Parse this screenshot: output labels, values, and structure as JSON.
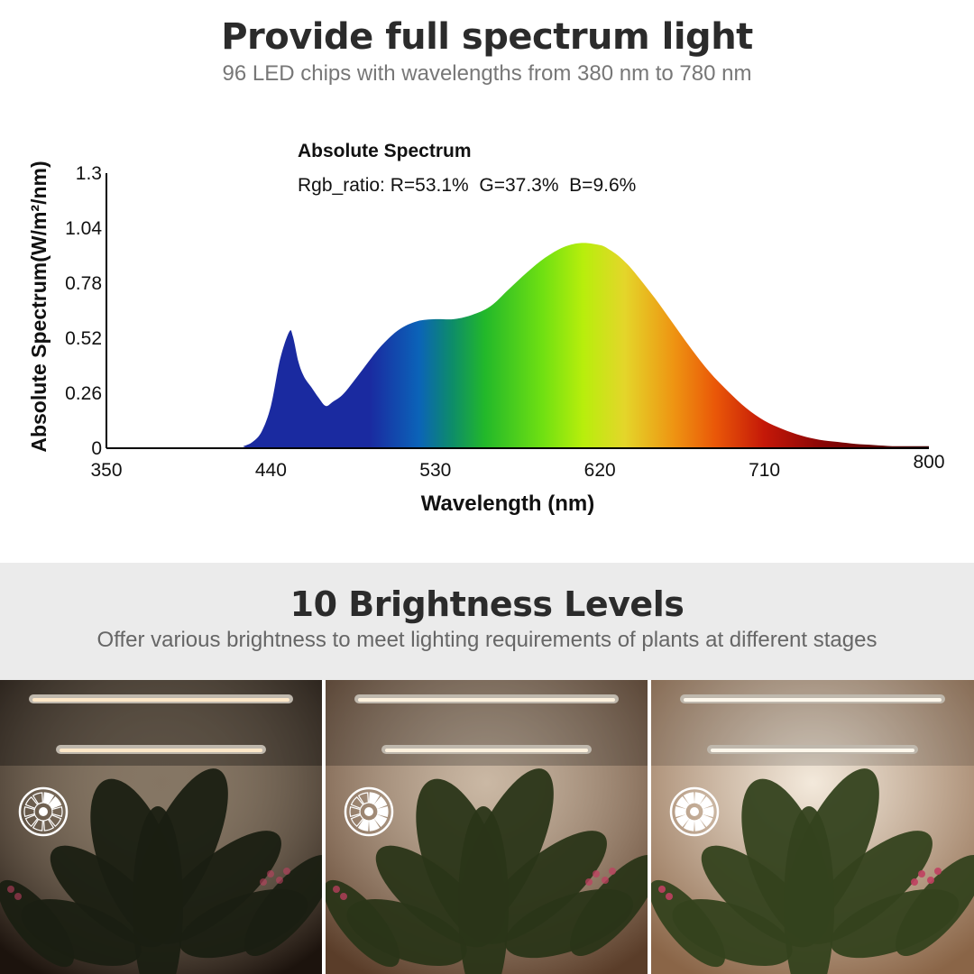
{
  "header": {
    "title": "Provide full spectrum light",
    "subtitle": "96 LED chips with wavelengths from 380 nm to 780 nm"
  },
  "chart_data": {
    "type": "area",
    "title": "Absolute Spectrum",
    "subtitle": "Rgb_ratio: R=53.1%  G=37.3%  B=9.6%",
    "xlabel": "Wavelength (nm)",
    "ylabel": "Absolute Spectrum(W/m²/nm)",
    "xlim": [
      350,
      800
    ],
    "ylim": [
      0,
      1.3
    ],
    "xticks": [
      "350",
      "440",
      "530",
      "620",
      "710",
      "800"
    ],
    "yticks": [
      "0",
      "0.26",
      "0.52",
      "0.78",
      "1.04",
      "1.3"
    ],
    "grid": false,
    "x": [
      350,
      420,
      425,
      430,
      435,
      440,
      445,
      450,
      452,
      455,
      458,
      462,
      466,
      470,
      474,
      480,
      490,
      500,
      510,
      520,
      530,
      540,
      550,
      560,
      570,
      580,
      590,
      600,
      610,
      620,
      625,
      630,
      635,
      640,
      650,
      660,
      670,
      680,
      690,
      700,
      710,
      720,
      730,
      740,
      750,
      760,
      770,
      780,
      790,
      800
    ],
    "values": [
      0,
      0,
      0.01,
      0.03,
      0.08,
      0.2,
      0.42,
      0.55,
      0.53,
      0.41,
      0.34,
      0.29,
      0.24,
      0.2,
      0.22,
      0.26,
      0.37,
      0.48,
      0.56,
      0.6,
      0.61,
      0.61,
      0.63,
      0.67,
      0.75,
      0.83,
      0.9,
      0.95,
      0.97,
      0.96,
      0.94,
      0.91,
      0.87,
      0.82,
      0.71,
      0.59,
      0.47,
      0.36,
      0.27,
      0.19,
      0.13,
      0.09,
      0.06,
      0.04,
      0.03,
      0.02,
      0.015,
      0.01,
      0.01,
      0.01
    ]
  },
  "brightness": {
    "title": "10 Brightness Levels",
    "subtitle": "Offer various brightness to meet lighting requirements of plants at different stages",
    "levels": [
      {
        "level": 0.2,
        "bg": "#1c130d",
        "light": "#ffe8c8"
      },
      {
        "level": 0.6,
        "bg": "#5a3d29",
        "light": "#fff2de"
      },
      {
        "level": 1.0,
        "bg": "#8a6547",
        "light": "#fff8ec"
      }
    ]
  }
}
